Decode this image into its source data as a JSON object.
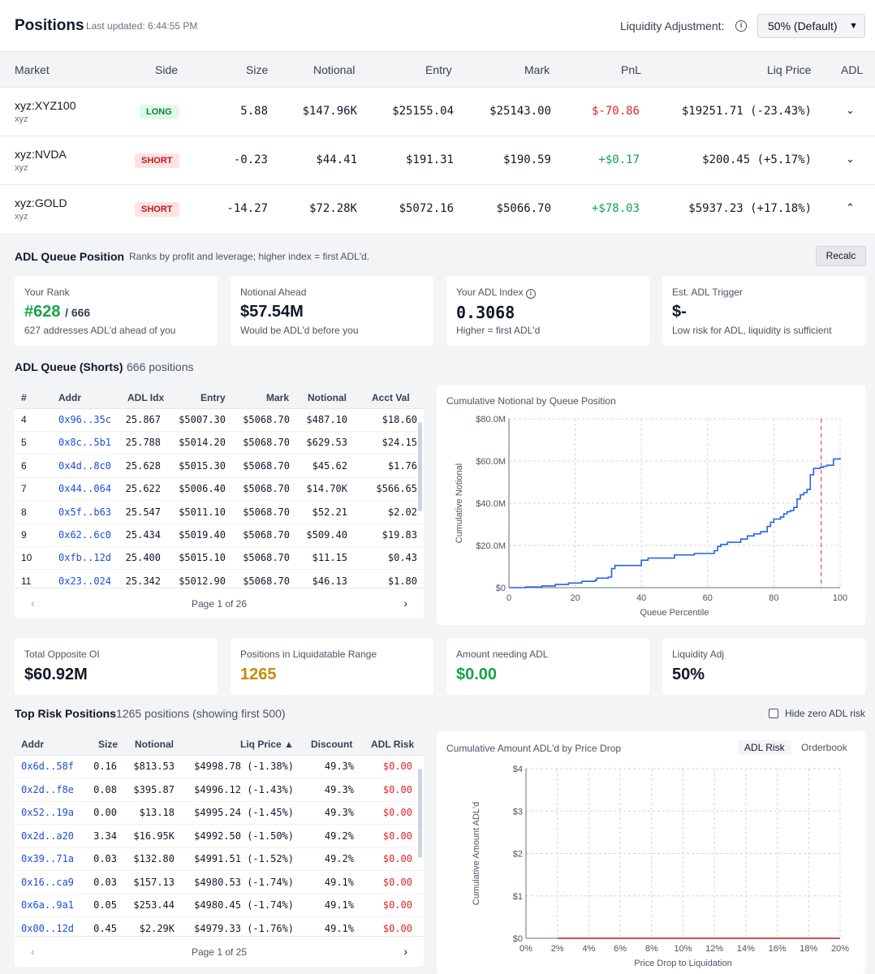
{
  "header": {
    "title": "Positions",
    "last_updated": "Last updated: 6:44:55 PM",
    "liquidity_label": "Liquidity Adjustment:",
    "liquidity_select": "50% (Default)"
  },
  "positions": {
    "columns": [
      "Market",
      "Side",
      "Size",
      "Notional",
      "Entry",
      "Mark",
      "PnL",
      "Liq Price",
      "ADL"
    ],
    "rows": [
      {
        "market": "xyz:XYZ100",
        "sub": "xyz",
        "side": "LONG",
        "size": "5.88",
        "notional": "$147.96K",
        "entry": "$25155.04",
        "mark": "$25143.00",
        "pnl": "$-70.86",
        "liq": "$19251.71 (-23.43%)"
      },
      {
        "market": "xyz:NVDA",
        "sub": "xyz",
        "side": "SHORT",
        "size": "-0.23",
        "notional": "$44.41",
        "entry": "$191.31",
        "mark": "$190.59",
        "pnl": "+$0.17",
        "liq": "$200.45 (+5.17%)"
      },
      {
        "market": "xyz:GOLD",
        "sub": "xyz",
        "side": "SHORT",
        "size": "-14.27",
        "notional": "$72.28K",
        "entry": "$5072.16",
        "mark": "$5066.70",
        "pnl": "+$78.03",
        "liq": "$5937.23 (+17.18%)"
      }
    ]
  },
  "adl_queue_position": {
    "title": "ADL Queue Position",
    "subtitle": "Ranks by profit and leverage; higher index = first ADL'd.",
    "recalc": "Recalc",
    "cards": [
      {
        "label": "Your Rank",
        "value": "#628",
        "value_suffix": "/ 666",
        "note": "627 addresses ADL'd ahead of you"
      },
      {
        "label": "Notional Ahead",
        "value": "$57.54M",
        "note": "Would be ADL'd before you"
      },
      {
        "label": "Your ADL Index",
        "value": "0.3068",
        "note": "Higher = first ADL'd"
      },
      {
        "label": "Est. ADL Trigger",
        "value": "$-",
        "note": "Low risk for ADL, liquidity is sufficient"
      }
    ]
  },
  "adl_queue": {
    "title": "ADL Queue (Shorts)",
    "count": "666 positions",
    "columns": [
      "#",
      "Addr",
      "ADL Idx",
      "Entry",
      "Mark",
      "Notional",
      "Acct Val"
    ],
    "rows": [
      [
        "4",
        "0x96..35c",
        "25.867",
        "$5007.30",
        "$5068.70",
        "$487.10",
        "$18.60"
      ],
      [
        "5",
        "0x8c..5b1",
        "25.788",
        "$5014.20",
        "$5068.70",
        "$629.53",
        "$24.15"
      ],
      [
        "6",
        "0x4d..8c0",
        "25.628",
        "$5015.30",
        "$5068.70",
        "$45.62",
        "$1.76"
      ],
      [
        "7",
        "0x44..064",
        "25.622",
        "$5006.40",
        "$5068.70",
        "$14.70K",
        "$566.65"
      ],
      [
        "8",
        "0x5f..b63",
        "25.547",
        "$5011.10",
        "$5068.70",
        "$52.21",
        "$2.02"
      ],
      [
        "9",
        "0x62..6c0",
        "25.434",
        "$5019.40",
        "$5068.70",
        "$509.40",
        "$19.83"
      ],
      [
        "10",
        "0xfb..12d",
        "25.400",
        "$5015.10",
        "$5068.70",
        "$11.15",
        "$0.43"
      ],
      [
        "11",
        "0x23..024",
        "25.342",
        "$5012.90",
        "$5068.70",
        "$46.13",
        "$1.80"
      ]
    ],
    "page": "Page 1 of 26",
    "prev": "‹",
    "next": "›"
  },
  "stats": [
    {
      "label": "Total Opposite OI",
      "value": "$60.92M",
      "color": "#111827"
    },
    {
      "label": "Positions in Liquidatable Range",
      "value": "1265",
      "color": "#ca8a04"
    },
    {
      "label": "Amount needing ADL",
      "value": "$0.00",
      "color": "#16a34a"
    },
    {
      "label": "Liquidity Adj",
      "value": "50%",
      "color": "#111827"
    }
  ],
  "top_risk": {
    "title": "Top Risk Positions",
    "count": "1265 positions (showing first 500)",
    "hide_label": "Hide zero ADL risk",
    "columns": [
      "Addr",
      "Size",
      "Notional",
      "Liq Price ▲",
      "Discount",
      "ADL Risk"
    ],
    "rows": [
      [
        "0x6d..58f",
        "0.16",
        "$813.53",
        "$4998.78 (-1.38%)",
        "49.3%",
        "$0.00"
      ],
      [
        "0x2d..f8e",
        "0.08",
        "$395.87",
        "$4996.12 (-1.43%)",
        "49.3%",
        "$0.00"
      ],
      [
        "0x52..19a",
        "0.00",
        "$13.18",
        "$4995.24 (-1.45%)",
        "49.3%",
        "$0.00"
      ],
      [
        "0x2d..a20",
        "3.34",
        "$16.95K",
        "$4992.50 (-1.50%)",
        "49.2%",
        "$0.00"
      ],
      [
        "0x39..71a",
        "0.03",
        "$132.80",
        "$4991.51 (-1.52%)",
        "49.2%",
        "$0.00"
      ],
      [
        "0x16..ca9",
        "0.03",
        "$157.13",
        "$4980.53 (-1.74%)",
        "49.1%",
        "$0.00"
      ],
      [
        "0x6a..9a1",
        "0.05",
        "$253.44",
        "$4980.45 (-1.74%)",
        "49.1%",
        "$0.00"
      ],
      [
        "0x00..12d",
        "0.45",
        "$2.29K",
        "$4979.33 (-1.76%)",
        "49.1%",
        "$0.00"
      ]
    ],
    "page": "Page 1 of 25",
    "prev": "‹",
    "next": "›"
  },
  "chart_data": [
    {
      "type": "line",
      "title": "Cumulative Notional by Queue Position",
      "xlabel": "Queue Percentile",
      "ylabel": "Cumulative Notional",
      "xlim": [
        0,
        100
      ],
      "ylim": [
        0,
        80
      ],
      "xticks": [
        "0",
        "20",
        "40",
        "60",
        "80",
        "100"
      ],
      "yticks": [
        "$0",
        "$20.0M",
        "$40.0M",
        "$60.0M",
        "$80.0M"
      ],
      "grid": true,
      "marker_x": 94.3,
      "series": [
        {
          "color": "#2563eb",
          "x": [
            0,
            5,
            10,
            14,
            18,
            22,
            26,
            26.5,
            30,
            31,
            32,
            40,
            42,
            50,
            56,
            62,
            63,
            64,
            66,
            70,
            72,
            74,
            76,
            78,
            79,
            80,
            82,
            83,
            84,
            85,
            86,
            87,
            88,
            89,
            90,
            91,
            92,
            94,
            95,
            96,
            98,
            100
          ],
          "y": [
            0,
            0.3,
            0.8,
            1.5,
            2.2,
            3.0,
            3.5,
            4.5,
            5.0,
            9.0,
            10.5,
            13.0,
            14.0,
            15.5,
            16.2,
            17.5,
            19.5,
            20.5,
            21.5,
            23.0,
            24.5,
            25.5,
            26.5,
            29.0,
            31.0,
            32.5,
            33.5,
            35.0,
            36.0,
            36.5,
            38.0,
            42.0,
            44.0,
            45.0,
            46.5,
            53.5,
            56.5,
            57.0,
            57.5,
            58.0,
            61.0,
            61.5
          ]
        }
      ]
    },
    {
      "type": "line",
      "title": "Cumulative Amount ADL'd by Price Drop",
      "tabs": [
        "ADL Risk",
        "Orderbook"
      ],
      "xlabel": "Price Drop to Liquidation",
      "ylabel": "Cumulative Amount ADL'd",
      "xlim": [
        0,
        20
      ],
      "ylim": [
        0,
        4
      ],
      "xticks": [
        "0%",
        "2%",
        "4%",
        "6%",
        "8%",
        "10%",
        "12%",
        "14%",
        "16%",
        "18%",
        "20%"
      ],
      "yticks": [
        "$0",
        "$1",
        "$2",
        "$3",
        "$4"
      ],
      "grid": true,
      "series": [
        {
          "color": "#b91c1c",
          "x": [
            2,
            20
          ],
          "y": [
            0,
            0
          ]
        }
      ]
    }
  ],
  "colors": {
    "green": "#16a34a",
    "red": "#dc2626",
    "link": "#1d4ed8",
    "panel_bg": "#f3f4f6"
  }
}
